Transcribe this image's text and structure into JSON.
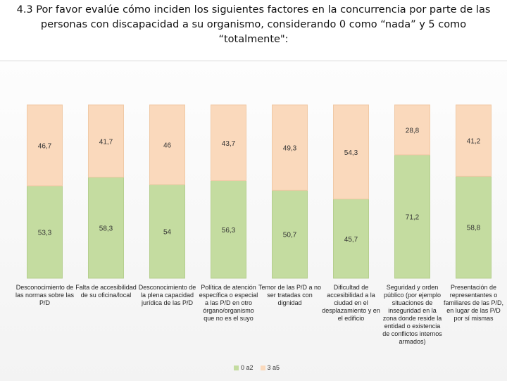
{
  "title": "4.3 Por favor evalúe cómo inciden los siguientes factores en la concurrencia por parte de las personas con discapacidad a su organismo, considerando 0 como “nada” y 5 como “totalmente\":",
  "colors": {
    "series_low": "#c4dca0",
    "series_high": "#fad9bc",
    "bar_stroke": "#e2e2e2"
  },
  "chart_data": {
    "type": "bar",
    "stacked": true,
    "percent": true,
    "ylim": [
      0,
      100
    ],
    "grid": false,
    "legend_position": "bottom",
    "categories": [
      "Desconocimiento de las normas sobre las P/D",
      "Falta de accesibilidad de su oficina/local",
      "Desconocimiento de la plena capacidad jurídica de las P/D",
      "Política de atención específica o especial a las P/D en otro órgano/organismo que no es el suyo",
      "Temor de las P/D a no ser tratadas con dignidad",
      "Dificultad de accesibilidad a la ciudad en el desplazamiento y en el edificio",
      "Seguridad y orden público (por ejemplo situaciones de inseguridad en la zona donde reside la entidad o existencia de conflictos internos armados)",
      "Presentación de representantes o familiares de las P/D, en lugar de las P/D por sí mismas"
    ],
    "series": [
      {
        "name": "0 a2",
        "values": [
          53.3,
          58.3,
          54,
          56.3,
          50.7,
          45.7,
          71.2,
          58.8
        ],
        "labels": [
          "53,3",
          "58,3",
          "54",
          "56,3",
          "50,7",
          "45,7",
          "71,2",
          "58,8"
        ]
      },
      {
        "name": "3 a5",
        "values": [
          46.7,
          41.7,
          46,
          43.7,
          49.3,
          54.3,
          28.8,
          41.2
        ],
        "labels": [
          "46,7",
          "41,7",
          "46",
          "43,7",
          "49,3",
          "54,3",
          "28,8",
          "41,2"
        ]
      }
    ]
  }
}
